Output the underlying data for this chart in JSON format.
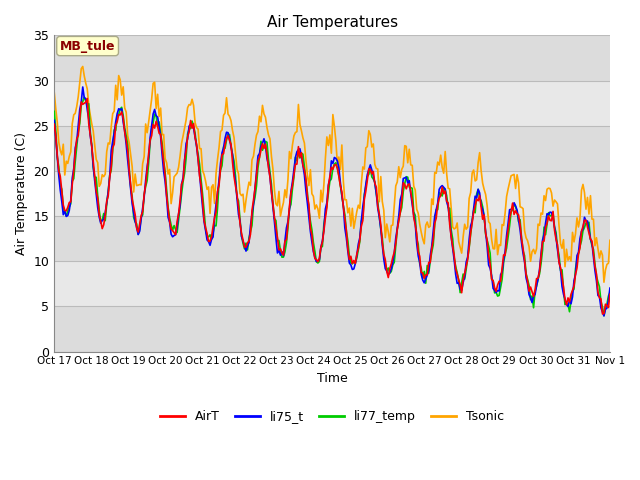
{
  "title": "Air Temperatures",
  "xlabel": "Time",
  "ylabel": "Air Temperature (C)",
  "ylim": [
    0,
    35
  ],
  "yticks": [
    0,
    5,
    10,
    15,
    20,
    25,
    30,
    35
  ],
  "xtick_labels": [
    "Oct 17",
    "Oct 18",
    "Oct 19",
    "Oct 20",
    "Oct 21",
    "Oct 22",
    "Oct 23",
    "Oct 24",
    "Oct 25",
    "Oct 26",
    "Oct 27",
    "Oct 28",
    "Oct 29",
    "Oct 30",
    "Oct 31",
    "Nov 1"
  ],
  "annotation_text": "MB_tule",
  "annotation_color": "#8B0000",
  "annotation_bg": "#FFFFCC",
  "colors": {
    "AirT": "#FF0000",
    "li75_t": "#0000FF",
    "li77_temp": "#00CC00",
    "Tsonic": "#FFA500"
  },
  "band_colors": [
    "#DCDCDC",
    "#F0F0F0"
  ],
  "grid_color": "#BBBBBB"
}
